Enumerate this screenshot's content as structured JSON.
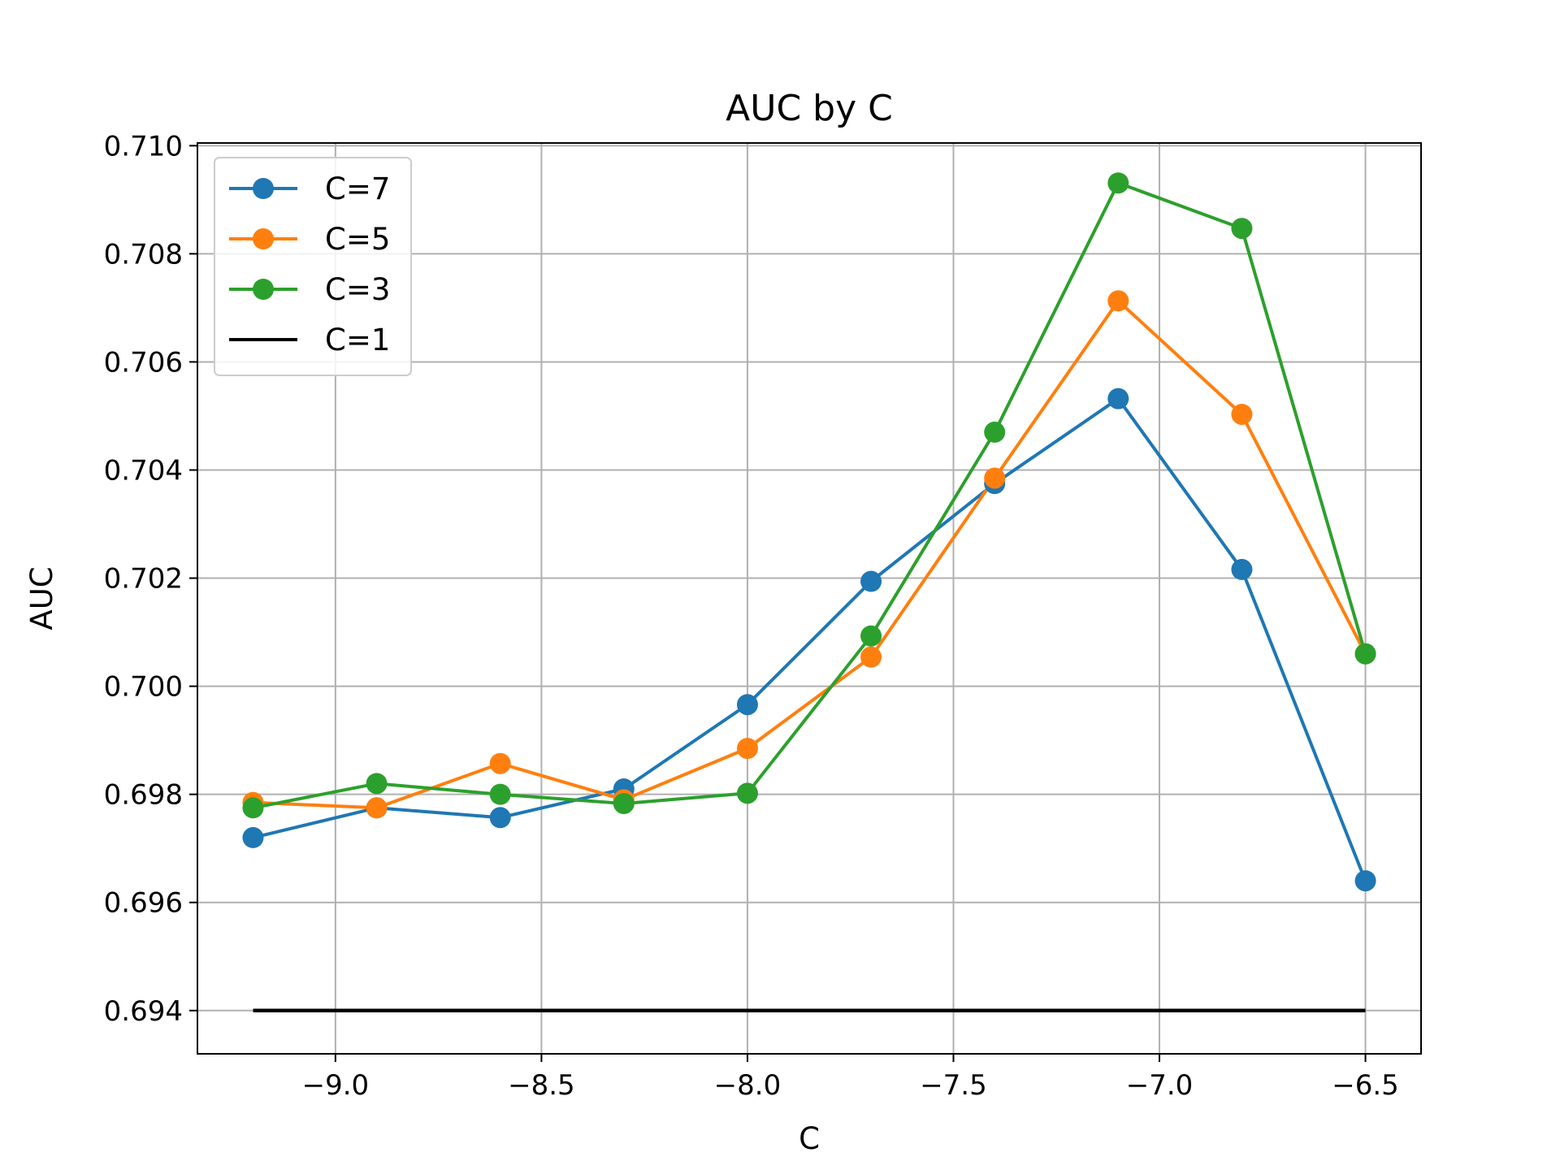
{
  "chart_data": {
    "type": "line",
    "title": "AUC by C",
    "xlabel": "C",
    "ylabel": "AUC",
    "xlim": [
      -9.335,
      -6.365
    ],
    "ylim": [
      0.6932,
      0.71005
    ],
    "x_ticks": [
      -9.0,
      -8.5,
      -8.0,
      -7.5,
      -7.0,
      -6.5
    ],
    "x_tick_labels": [
      "−9.0",
      "−8.5",
      "−8.0",
      "−7.5",
      "−7.0",
      "−6.5"
    ],
    "y_ticks": [
      0.694,
      0.696,
      0.698,
      0.7,
      0.702,
      0.704,
      0.706,
      0.708,
      0.71
    ],
    "y_tick_labels": [
      "0.694",
      "0.696",
      "0.698",
      "0.700",
      "0.702",
      "0.704",
      "0.706",
      "0.708",
      "0.710"
    ],
    "grid": true,
    "legend_position": "top-left",
    "x": [
      -9.2,
      -8.9,
      -8.6,
      -8.3,
      -8.0,
      -7.7,
      -7.4,
      -7.1,
      -6.8,
      -6.5
    ],
    "series": [
      {
        "name": "C=7",
        "color": "#1f77b4",
        "marker": true,
        "values": [
          0.6972,
          0.69775,
          0.69757,
          0.6981,
          0.69966,
          0.70194,
          0.70375,
          0.70532,
          0.70216,
          0.6964
        ]
      },
      {
        "name": "C=5",
        "color": "#ff7f0e",
        "marker": true,
        "values": [
          0.69785,
          0.69775,
          0.69857,
          0.6979,
          0.69885,
          0.70054,
          0.70385,
          0.70713,
          0.70503,
          0.7006
        ]
      },
      {
        "name": "C=3",
        "color": "#2ca02c",
        "marker": true,
        "values": [
          0.69775,
          0.6982,
          0.698,
          0.69783,
          0.69802,
          0.70093,
          0.7047,
          0.70931,
          0.70847,
          0.7006
        ]
      },
      {
        "name": "C=1",
        "color": "#000000",
        "marker": false,
        "values": [
          0.694,
          0.694,
          0.694,
          0.694,
          0.694,
          0.694,
          0.694,
          0.694,
          0.694,
          0.694
        ]
      }
    ]
  }
}
